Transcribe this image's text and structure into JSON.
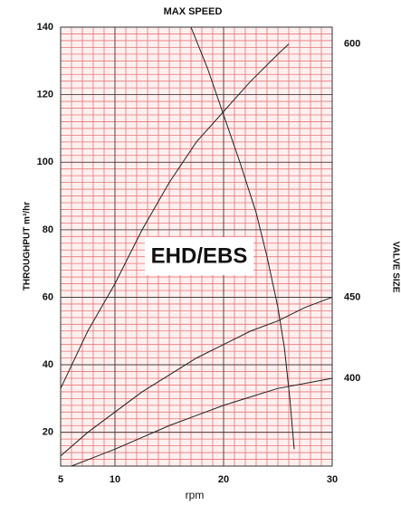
{
  "chart_data": {
    "type": "line",
    "title": "MAX SPEED",
    "annotation": "EHD/EBS",
    "xlabel": "rpm",
    "ylabel": "THROUGHPUT m³/hr",
    "y2label": "VALVE SIZE",
    "xlim": [
      5,
      30
    ],
    "ylim": [
      10,
      140
    ],
    "xticks": [
      5,
      10,
      20,
      30
    ],
    "yticks": [
      20,
      40,
      60,
      80,
      100,
      120,
      140
    ],
    "grid": true,
    "grid_color": "#e8757a",
    "x_minor_step": 1,
    "y_minor_step": 2,
    "series": [
      {
        "name": "600",
        "color": "#222222",
        "x": [
          5,
          7.5,
          10,
          12.5,
          15,
          17.5,
          20,
          22.5,
          25,
          26
        ],
        "values": [
          33,
          50,
          64,
          80,
          94,
          106,
          115,
          124,
          132,
          135
        ]
      },
      {
        "name": "450",
        "color": "#222222",
        "x": [
          5,
          7.5,
          10,
          12.5,
          15,
          17.5,
          20,
          22.5,
          25,
          27.5,
          30
        ],
        "values": [
          13,
          20,
          26,
          32,
          37,
          42,
          46,
          50,
          53,
          57,
          60
        ]
      },
      {
        "name": "400",
        "color": "#222222",
        "x": [
          6,
          8,
          10,
          12.5,
          15,
          17.5,
          20,
          22.5,
          25,
          27.5,
          30
        ],
        "values": [
          10,
          12.5,
          15,
          18.5,
          22,
          25,
          28,
          30.5,
          33,
          34.5,
          36
        ]
      },
      {
        "name": "MAX SPEED",
        "color": "#222222",
        "x": [
          17,
          18.5,
          20,
          21.5,
          23,
          24,
          25,
          25.6,
          26.1,
          26.5
        ],
        "values": [
          140,
          128,
          114,
          100,
          85,
          72,
          57,
          45,
          30,
          15
        ]
      }
    ]
  }
}
